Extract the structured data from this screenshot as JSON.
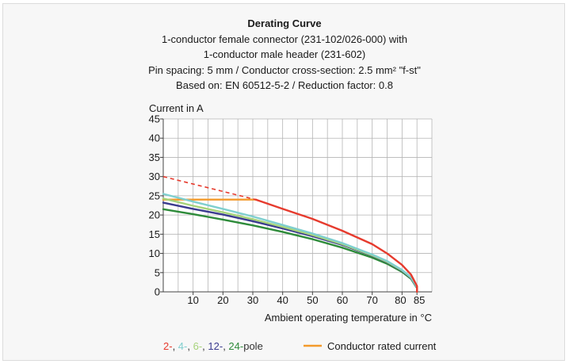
{
  "header": {
    "title": "Derating Curve",
    "lines": [
      "1-conductor female connector (231-102/026-000) with",
      "1-conductor male header (231-602)",
      "Pin spacing: 5 mm / Conductor cross-section: 2.5 mm² \"f-st\"",
      "Based on: EN 60512-5-2 / Reduction factor: 0.8"
    ]
  },
  "legend": {
    "pole_parts": [
      {
        "text": "2-",
        "color": "#e63b2e"
      },
      {
        "text": ", ",
        "color": "#333333"
      },
      {
        "text": "4-",
        "color": "#7fcfcf"
      },
      {
        "text": ", ",
        "color": "#333333"
      },
      {
        "text": "6-",
        "color": "#a7d37a"
      },
      {
        "text": ", ",
        "color": "#333333"
      },
      {
        "text": "12-",
        "color": "#3b3b8f"
      },
      {
        "text": ", ",
        "color": "#333333"
      },
      {
        "text": "24-",
        "color": "#2e8b3a"
      },
      {
        "text": "pole",
        "color": "#333333"
      }
    ],
    "rated_label": "Conductor rated current",
    "rated_color": "#f39a2b"
  },
  "chart_data": {
    "type": "line",
    "title": "Derating Curve",
    "xlabel": "Ambient operating temperature in °C",
    "ylabel": "Current in A",
    "xlim": [
      0,
      90
    ],
    "ylim": [
      0,
      45
    ],
    "xticks": [
      10,
      20,
      30,
      40,
      50,
      60,
      70,
      80,
      85
    ],
    "yticks": [
      0,
      5,
      10,
      15,
      20,
      25,
      30,
      35,
      40,
      45
    ],
    "grid": true,
    "series": [
      {
        "name": "2-pole",
        "color": "#e63b2e",
        "dashed": {
          "x": [
            0,
            31
          ],
          "y": [
            30,
            24
          ]
        },
        "x": [
          31,
          40,
          50,
          60,
          70,
          75,
          80,
          83,
          85,
          85
        ],
        "y": [
          24,
          21.6,
          19.0,
          15.9,
          12.4,
          10.0,
          7.0,
          4.5,
          1.5,
          0
        ]
      },
      {
        "name": "4-pole",
        "color": "#7fcfcf",
        "x": [
          0,
          10,
          20,
          30,
          40,
          50,
          60,
          70,
          75,
          80,
          83,
          85,
          85
        ],
        "y": [
          25.5,
          23.5,
          21.6,
          19.6,
          17.4,
          15.2,
          12.7,
          9.7,
          8.0,
          5.7,
          3.8,
          1.2,
          0
        ]
      },
      {
        "name": "6-pole",
        "color": "#a7d37a",
        "x": [
          0,
          10,
          20,
          30,
          40,
          50,
          60,
          70,
          75,
          80,
          83,
          85,
          85
        ],
        "y": [
          24.3,
          22.4,
          20.7,
          18.9,
          16.9,
          14.8,
          12.4,
          9.5,
          7.8,
          5.6,
          3.7,
          1.2,
          0
        ]
      },
      {
        "name": "12-pole",
        "color": "#3b3b8f",
        "x": [
          0,
          10,
          20,
          30,
          40,
          50,
          60,
          70,
          75,
          80,
          83,
          85,
          85
        ],
        "y": [
          23.2,
          21.6,
          20.1,
          18.4,
          16.5,
          14.5,
          12.2,
          9.4,
          7.7,
          5.5,
          3.6,
          1.1,
          0
        ]
      },
      {
        "name": "24-pole",
        "color": "#2e8b3a",
        "x": [
          0,
          10,
          20,
          30,
          40,
          50,
          60,
          70,
          75,
          80,
          83,
          85,
          85
        ],
        "y": [
          21.5,
          20.2,
          18.8,
          17.3,
          15.6,
          13.7,
          11.5,
          8.9,
          7.3,
          5.2,
          3.4,
          1.0,
          0
        ]
      },
      {
        "name": "Conductor rated current",
        "color": "#f39a2b",
        "x": [
          0,
          31
        ],
        "y": [
          24,
          24
        ]
      }
    ]
  }
}
